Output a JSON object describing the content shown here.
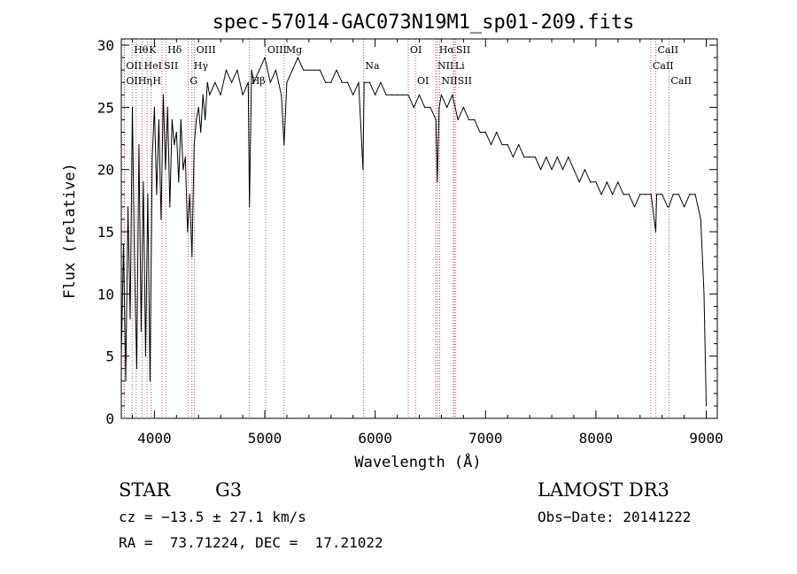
{
  "chart_data": {
    "type": "line",
    "title": "spec-57014-GAC073N19M1_sp01-209.fits",
    "xlabel": "Wavelength (Å)",
    "ylabel": "Flux (relative)",
    "xlim": [
      3700,
      9100
    ],
    "ylim": [
      0,
      30.5
    ],
    "xticks": [
      4000,
      5000,
      6000,
      7000,
      8000,
      9000
    ],
    "yticks": [
      0,
      5,
      10,
      15,
      20,
      25,
      30
    ],
    "series": [
      {
        "name": "flux",
        "x": [
          3700,
          3720,
          3740,
          3760,
          3780,
          3800,
          3820,
          3840,
          3860,
          3880,
          3900,
          3920,
          3940,
          3960,
          3980,
          4000,
          4020,
          4040,
          4060,
          4080,
          4100,
          4120,
          4140,
          4160,
          4180,
          4200,
          4220,
          4240,
          4260,
          4280,
          4300,
          4320,
          4340,
          4360,
          4380,
          4400,
          4420,
          4440,
          4460,
          4480,
          4500,
          4550,
          4600,
          4650,
          4700,
          4750,
          4800,
          4850,
          4861,
          4880,
          4900,
          4950,
          5000,
          5050,
          5100,
          5150,
          5175,
          5200,
          5250,
          5300,
          5350,
          5400,
          5450,
          5500,
          5550,
          5600,
          5650,
          5700,
          5750,
          5800,
          5850,
          5890,
          5900,
          5950,
          6000,
          6050,
          6100,
          6150,
          6200,
          6250,
          6300,
          6350,
          6400,
          6450,
          6500,
          6550,
          6563,
          6580,
          6600,
          6650,
          6700,
          6750,
          6800,
          6850,
          6900,
          6950,
          7000,
          7050,
          7100,
          7150,
          7200,
          7250,
          7300,
          7350,
          7400,
          7450,
          7500,
          7550,
          7600,
          7650,
          7700,
          7750,
          7800,
          7850,
          7900,
          7950,
          8000,
          8050,
          8100,
          8150,
          8200,
          8250,
          8300,
          8350,
          8400,
          8450,
          8500,
          8542,
          8550,
          8600,
          8650,
          8662,
          8700,
          8750,
          8800,
          8850,
          8900,
          8950,
          8980,
          9000
        ],
        "y": [
          5,
          14,
          3,
          17,
          8,
          25,
          12,
          4,
          22,
          7,
          19,
          5,
          18,
          3,
          21,
          25,
          18,
          24,
          16,
          26,
          20,
          25,
          17,
          24,
          22,
          23,
          19,
          24,
          20,
          21,
          15,
          18,
          13,
          22,
          24,
          25,
          23,
          26,
          24,
          27,
          26,
          27,
          26,
          28,
          27,
          28,
          26,
          27,
          17,
          28,
          27,
          28,
          29,
          27,
          28,
          26,
          22,
          27,
          28,
          29,
          28,
          28,
          28,
          28,
          27,
          27,
          28,
          27,
          27,
          26,
          27,
          20,
          27,
          27,
          26,
          27,
          26,
          26,
          26,
          26,
          26,
          25,
          26,
          25,
          25,
          24,
          19,
          25,
          26,
          25,
          26,
          24,
          25,
          24,
          24,
          23,
          23,
          22,
          23,
          22,
          22,
          21,
          22,
          21,
          21,
          21,
          20,
          21,
          20,
          21,
          20,
          21,
          20,
          19,
          20,
          19,
          19,
          18,
          19,
          18,
          19,
          18,
          18,
          17,
          18,
          18,
          18,
          15,
          18,
          18,
          17,
          17,
          18,
          18,
          17,
          18,
          18,
          16,
          10,
          1
        ]
      }
    ],
    "lines": [
      {
        "label": "Hθ",
        "x": 3798
      },
      {
        "label": "OII",
        "x": 3727
      },
      {
        "label": "OII",
        "x": 3727
      },
      {
        "label": "Hη",
        "x": 3835
      },
      {
        "label": "K",
        "x": 3934
      },
      {
        "label": "HeI",
        "x": 3889
      },
      {
        "label": "H",
        "x": 3968
      },
      {
        "label": "SII",
        "x": 4069
      },
      {
        "label": "Hδ",
        "x": 4102
      },
      {
        "label": "OIII",
        "x": 4363
      },
      {
        "label": "Hγ",
        "x": 4340
      },
      {
        "label": "G",
        "x": 4305
      },
      {
        "label": "OIII",
        "x": 5007
      },
      {
        "label": "Mg",
        "x": 5175
      },
      {
        "label": "Hβ",
        "x": 4861
      },
      {
        "label": "Na",
        "x": 5893
      },
      {
        "label": "OI",
        "x": 6300
      },
      {
        "label": "OI",
        "x": 6364
      },
      {
        "label": "Hα",
        "x": 6563
      },
      {
        "label": "SII",
        "x": 6717
      },
      {
        "label": "NII",
        "x": 6548
      },
      {
        "label": "Li",
        "x": 6708
      },
      {
        "label": "NII",
        "x": 6584
      },
      {
        "label": "SII",
        "x": 6731
      },
      {
        "label": "CaII",
        "x": 8542
      },
      {
        "label": "CaII",
        "x": 8498
      },
      {
        "label": "CaII",
        "x": 8662
      }
    ]
  },
  "info": {
    "object_class": "STAR",
    "subclass": "G3",
    "survey": "LAMOST DR3",
    "cz": "cz = −13.5 ± 27.1 km/s",
    "obs_date": "Obs−Date: 20141222",
    "coords": "RA =  73.71224, DEC =  17.21022"
  }
}
